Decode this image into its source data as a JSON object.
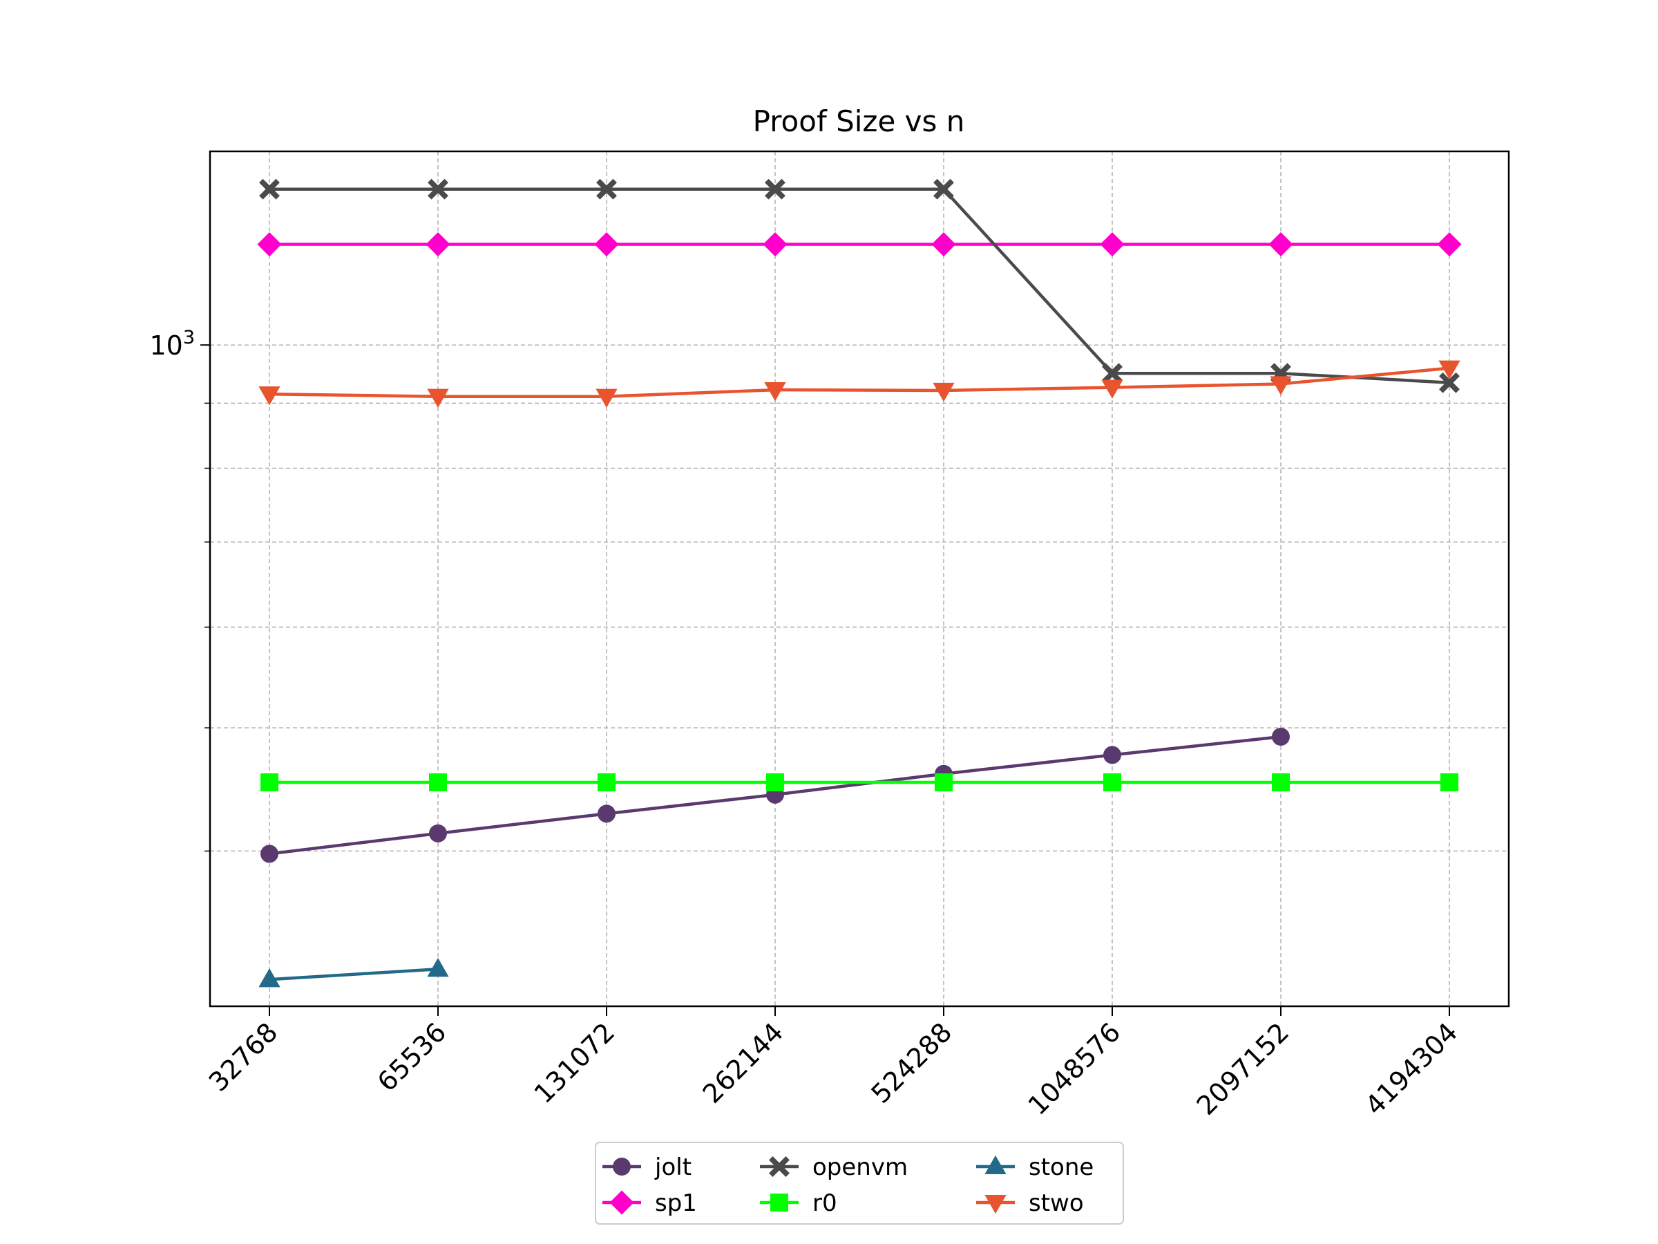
{
  "chart_data": {
    "type": "line",
    "title": "Proof Size vs n",
    "xlabel": "",
    "ylabel": "",
    "x_scale": "categorical",
    "y_scale": "log",
    "ylim": [
      302,
      1420
    ],
    "categories": [
      "32768",
      "65536",
      "131072",
      "262144",
      "524288",
      "1048576",
      "2097152",
      "4194304"
    ],
    "y_tick_labels": [
      {
        "value": 1000,
        "label": "10^3"
      }
    ],
    "y_minor_gridlines": [
      400,
      500,
      600,
      700,
      800,
      900
    ],
    "grid": true,
    "legend_position": "bottom-center",
    "series": [
      {
        "name": "jolt",
        "color": "#5a3a6e",
        "marker": "circle",
        "values": [
          398,
          413,
          428,
          443,
          460,
          476,
          492,
          null
        ]
      },
      {
        "name": "sp1",
        "color": "#ff00cc",
        "marker": "diamond",
        "values": [
          1200,
          1200,
          1200,
          1200,
          1200,
          1200,
          1200,
          1200
        ]
      },
      {
        "name": "openvm",
        "color": "#4a4a4a",
        "marker": "x",
        "values": [
          1326,
          1326,
          1326,
          1326,
          1326,
          950,
          950,
          934
        ]
      },
      {
        "name": "r0",
        "color": "#00ff00",
        "marker": "square",
        "values": [
          453,
          453,
          453,
          453,
          453,
          453,
          453,
          453
        ]
      },
      {
        "name": "stone",
        "color": "#236a8a",
        "marker": "triangle-up",
        "values": [
          317,
          323,
          null,
          null,
          null,
          null,
          null,
          null
        ]
      },
      {
        "name": "stwo",
        "color": "#e8542e",
        "marker": "triangle-down",
        "values": [
          915,
          911,
          911,
          922,
          921,
          926,
          932,
          959
        ]
      }
    ]
  }
}
